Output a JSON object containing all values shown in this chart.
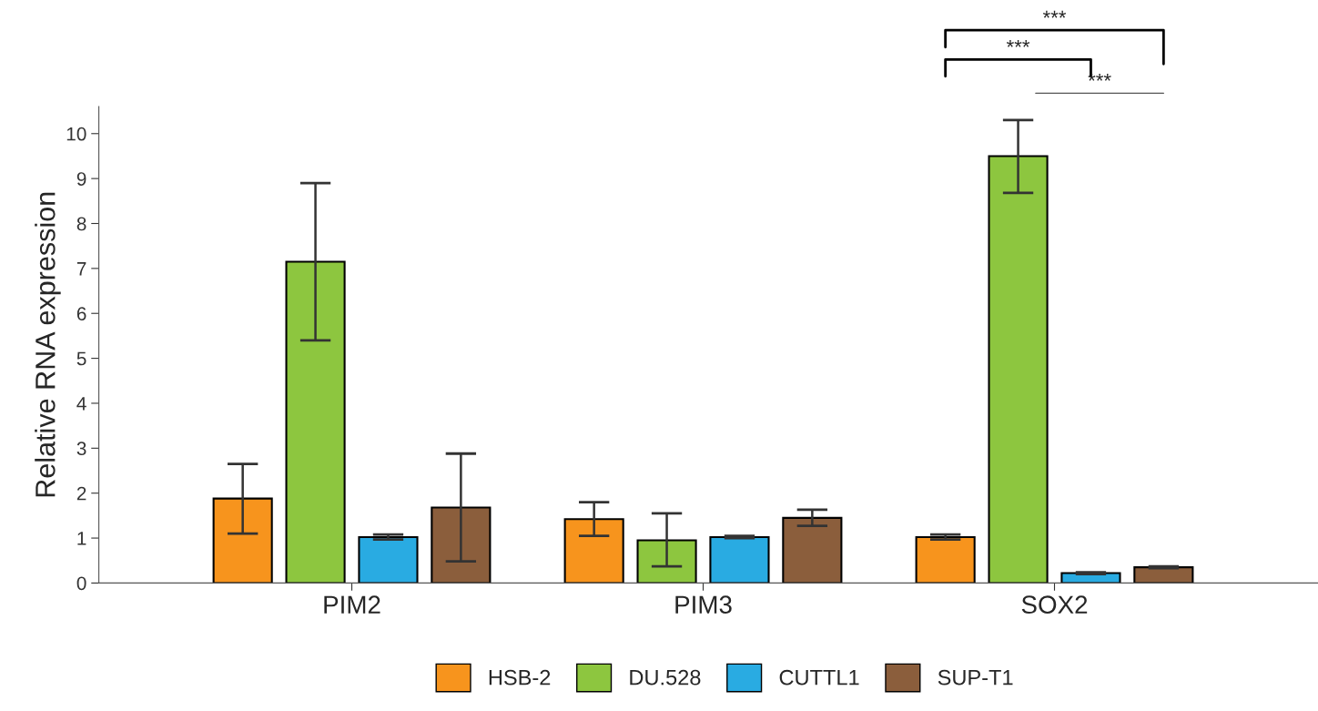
{
  "chart_data": {
    "type": "bar",
    "ylabel": "Relative RNA expression",
    "categories": [
      "PIM2",
      "PIM3",
      "SOX2"
    ],
    "series": [
      {
        "name": "HSB-2",
        "color": "#f7941d",
        "values": [
          1.88,
          1.42,
          1.02
        ],
        "errors": [
          [
            1.1,
            2.65
          ],
          [
            1.05,
            1.8
          ],
          [
            0.97,
            1.08
          ]
        ]
      },
      {
        "name": "DU.528",
        "color": "#8dc63f",
        "values": [
          7.15,
          0.95,
          9.5
        ],
        "errors": [
          [
            5.4,
            8.9
          ],
          [
            0.37,
            1.55
          ],
          [
            8.68,
            10.3
          ]
        ]
      },
      {
        "name": "CUTTL1",
        "color": "#29abe2",
        "values": [
          1.02,
          1.02,
          0.22
        ],
        "errors": [
          [
            0.97,
            1.08
          ],
          [
            1.0,
            1.05
          ],
          [
            0.2,
            0.24
          ]
        ]
      },
      {
        "name": "SUP-T1",
        "color": "#8b5e3c",
        "values": [
          1.68,
          1.45,
          0.35
        ],
        "errors": [
          [
            0.48,
            2.88
          ],
          [
            1.27,
            1.63
          ],
          [
            0.33,
            0.37
          ]
        ]
      }
    ],
    "ylim": [
      0,
      10.6
    ],
    "yticks": [
      0,
      1,
      2,
      3,
      4,
      5,
      6,
      7,
      8,
      9,
      10
    ],
    "annotations": [
      "***",
      "***",
      "***"
    ],
    "grid": false,
    "legend": "bottom"
  }
}
